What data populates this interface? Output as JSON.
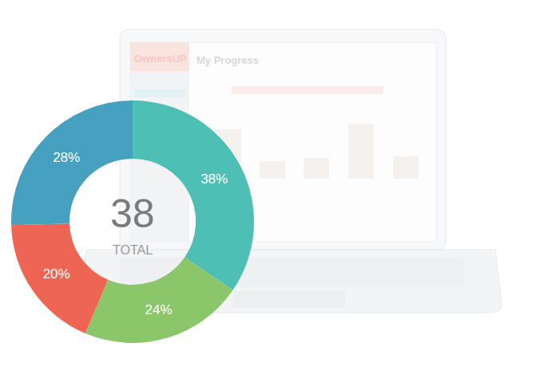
{
  "chart_data": {
    "type": "pie",
    "values": [
      38,
      24,
      20,
      28
    ],
    "value_labels": [
      "38%",
      "24%",
      "20%",
      "28%"
    ],
    "colors": [
      "#4dbfb4",
      "#8cc66a",
      "#ef6554",
      "#46a0bf"
    ],
    "data_labels": true,
    "annotations": [
      "38",
      "TOTAL"
    ]
  },
  "screen": {
    "brand": "OwnersUP",
    "title": "My Progress"
  }
}
